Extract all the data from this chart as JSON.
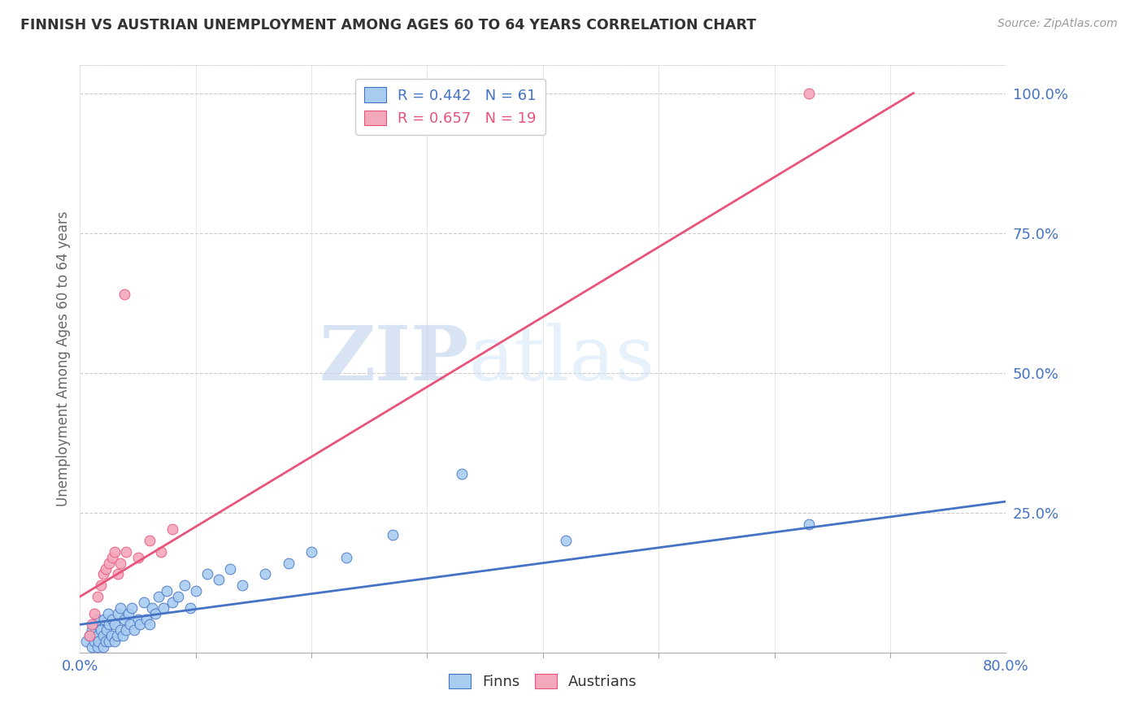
{
  "title": "FINNISH VS AUSTRIAN UNEMPLOYMENT AMONG AGES 60 TO 64 YEARS CORRELATION CHART",
  "source": "Source: ZipAtlas.com",
  "ylabel": "Unemployment Among Ages 60 to 64 years",
  "xlim": [
    0.0,
    0.8
  ],
  "ylim": [
    0.0,
    1.05
  ],
  "yticks": [
    0.0,
    0.25,
    0.5,
    0.75,
    1.0
  ],
  "ytick_labels": [
    "",
    "25.0%",
    "50.0%",
    "75.0%",
    "100.0%"
  ],
  "xtick_labels": [
    "0.0%",
    "80.0%"
  ],
  "finn_color": "#A8CCF0",
  "austrian_color": "#F4A8BC",
  "finn_line_color": "#4472C4",
  "austrian_line_color": "#E8547A",
  "legend_text_finn": "R = 0.442   N = 61",
  "legend_text_austrian": "R = 0.657   N = 19",
  "watermark_zip": "ZIP",
  "watermark_atlas": "atlas",
  "finn_line_x": [
    0.0,
    0.8
  ],
  "finn_line_y": [
    0.05,
    0.27
  ],
  "austrian_line_x": [
    0.0,
    0.72
  ],
  "austrian_line_y": [
    0.1,
    1.0
  ],
  "finn_scatter_x": [
    0.005,
    0.008,
    0.01,
    0.01,
    0.012,
    0.013,
    0.015,
    0.015,
    0.015,
    0.016,
    0.018,
    0.02,
    0.02,
    0.021,
    0.022,
    0.023,
    0.024,
    0.025,
    0.025,
    0.027,
    0.028,
    0.03,
    0.03,
    0.032,
    0.033,
    0.035,
    0.035,
    0.037,
    0.038,
    0.04,
    0.042,
    0.043,
    0.045,
    0.047,
    0.05,
    0.052,
    0.055,
    0.057,
    0.06,
    0.062,
    0.065,
    0.068,
    0.072,
    0.075,
    0.08,
    0.085,
    0.09,
    0.095,
    0.1,
    0.11,
    0.12,
    0.13,
    0.14,
    0.16,
    0.18,
    0.2,
    0.23,
    0.27,
    0.33,
    0.42,
    0.63
  ],
  "finn_scatter_y": [
    0.02,
    0.03,
    0.01,
    0.04,
    0.02,
    0.05,
    0.01,
    0.03,
    0.06,
    0.02,
    0.04,
    0.01,
    0.03,
    0.06,
    0.02,
    0.04,
    0.07,
    0.02,
    0.05,
    0.03,
    0.06,
    0.02,
    0.05,
    0.03,
    0.07,
    0.04,
    0.08,
    0.03,
    0.06,
    0.04,
    0.07,
    0.05,
    0.08,
    0.04,
    0.06,
    0.05,
    0.09,
    0.06,
    0.05,
    0.08,
    0.07,
    0.1,
    0.08,
    0.11,
    0.09,
    0.1,
    0.12,
    0.08,
    0.11,
    0.14,
    0.13,
    0.15,
    0.12,
    0.14,
    0.16,
    0.18,
    0.17,
    0.21,
    0.32,
    0.2,
    0.23
  ],
  "austrian_scatter_x": [
    0.008,
    0.01,
    0.012,
    0.015,
    0.018,
    0.02,
    0.022,
    0.025,
    0.028,
    0.03,
    0.033,
    0.035,
    0.038,
    0.04,
    0.05,
    0.06,
    0.07,
    0.08,
    0.63
  ],
  "austrian_scatter_y": [
    0.03,
    0.05,
    0.07,
    0.1,
    0.12,
    0.14,
    0.15,
    0.16,
    0.17,
    0.18,
    0.14,
    0.16,
    0.64,
    0.18,
    0.17,
    0.2,
    0.18,
    0.22,
    1.0
  ]
}
